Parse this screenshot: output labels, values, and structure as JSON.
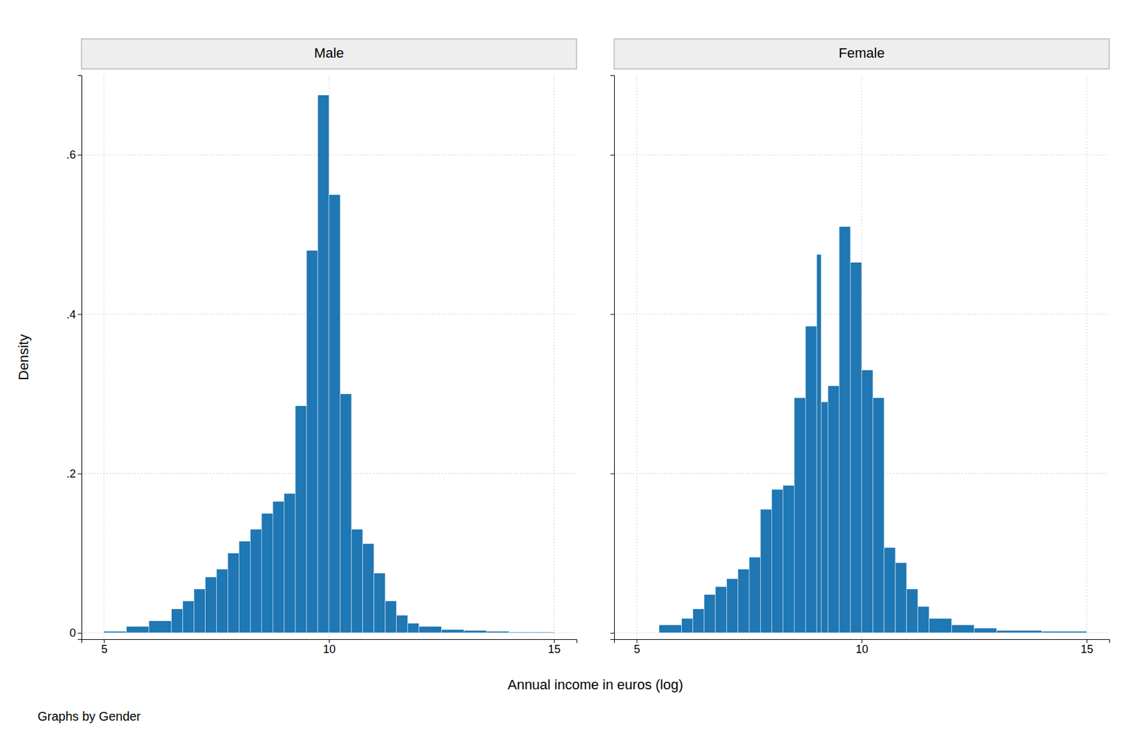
{
  "chart_data": [
    {
      "type": "histogram",
      "title": "Male",
      "xlabel": "Annual income in euros (log)",
      "ylabel": "Density",
      "annotations": [
        "Graphs by Gender"
      ],
      "bins": [
        4.5,
        5.0,
        5.5,
        6.0,
        6.5,
        6.75,
        7.0,
        7.25,
        7.5,
        7.75,
        8.0,
        8.25,
        8.5,
        8.75,
        9.0,
        9.25,
        9.5,
        9.75,
        10.0,
        10.25,
        10.5,
        10.75,
        11.0,
        11.25,
        11.5,
        11.75,
        12.0,
        12.5,
        13.0,
        13.5,
        14.0,
        15.0,
        15.5
      ],
      "values": [
        0.0,
        0.002,
        0.008,
        0.015,
        0.03,
        0.04,
        0.055,
        0.07,
        0.08,
        0.1,
        0.115,
        0.13,
        0.15,
        0.165,
        0.175,
        0.285,
        0.48,
        0.675,
        0.55,
        0.3,
        0.13,
        0.112,
        0.075,
        0.04,
        0.022,
        0.012,
        0.008,
        0.004,
        0.003,
        0.002,
        0.001,
        0.0
      ],
      "xlim": [
        4.5,
        15.5
      ],
      "ylim": [
        -0.008,
        0.7
      ],
      "xticks": [
        5,
        10,
        15
      ],
      "yticks": [
        0,
        {
          "value": 0.2,
          "label": ".2"
        },
        {
          "value": 0.4,
          "label": ".4"
        },
        {
          "value": 0.6,
          "label": ".6"
        }
      ],
      "grid": true
    },
    {
      "type": "histogram",
      "title": "Female",
      "bins": [
        4.5,
        5.5,
        6.0,
        6.25,
        6.5,
        6.75,
        7.0,
        7.25,
        7.5,
        7.75,
        8.0,
        8.25,
        8.5,
        8.75,
        9.0,
        9.1,
        9.25,
        9.5,
        9.75,
        10.0,
        10.25,
        10.5,
        10.75,
        11.0,
        11.25,
        11.5,
        12.0,
        12.5,
        13.0,
        14.0,
        15.0,
        15.5
      ],
      "values": [
        0.0,
        0.01,
        0.018,
        0.03,
        0.048,
        0.058,
        0.068,
        0.08,
        0.095,
        0.155,
        0.18,
        0.185,
        0.295,
        0.385,
        0.475,
        0.29,
        0.31,
        0.51,
        0.465,
        0.33,
        0.295,
        0.107,
        0.088,
        0.055,
        0.033,
        0.018,
        0.01,
        0.006,
        0.003,
        0.002,
        0.0
      ],
      "xlim": [
        4.5,
        15.5
      ],
      "ylim": [
        -0.008,
        0.7
      ],
      "xticks": [
        5,
        10,
        15
      ],
      "yticks": [
        0,
        0.2,
        0.4,
        0.6
      ],
      "tick_labels": "x",
      "grid": true
    }
  ]
}
